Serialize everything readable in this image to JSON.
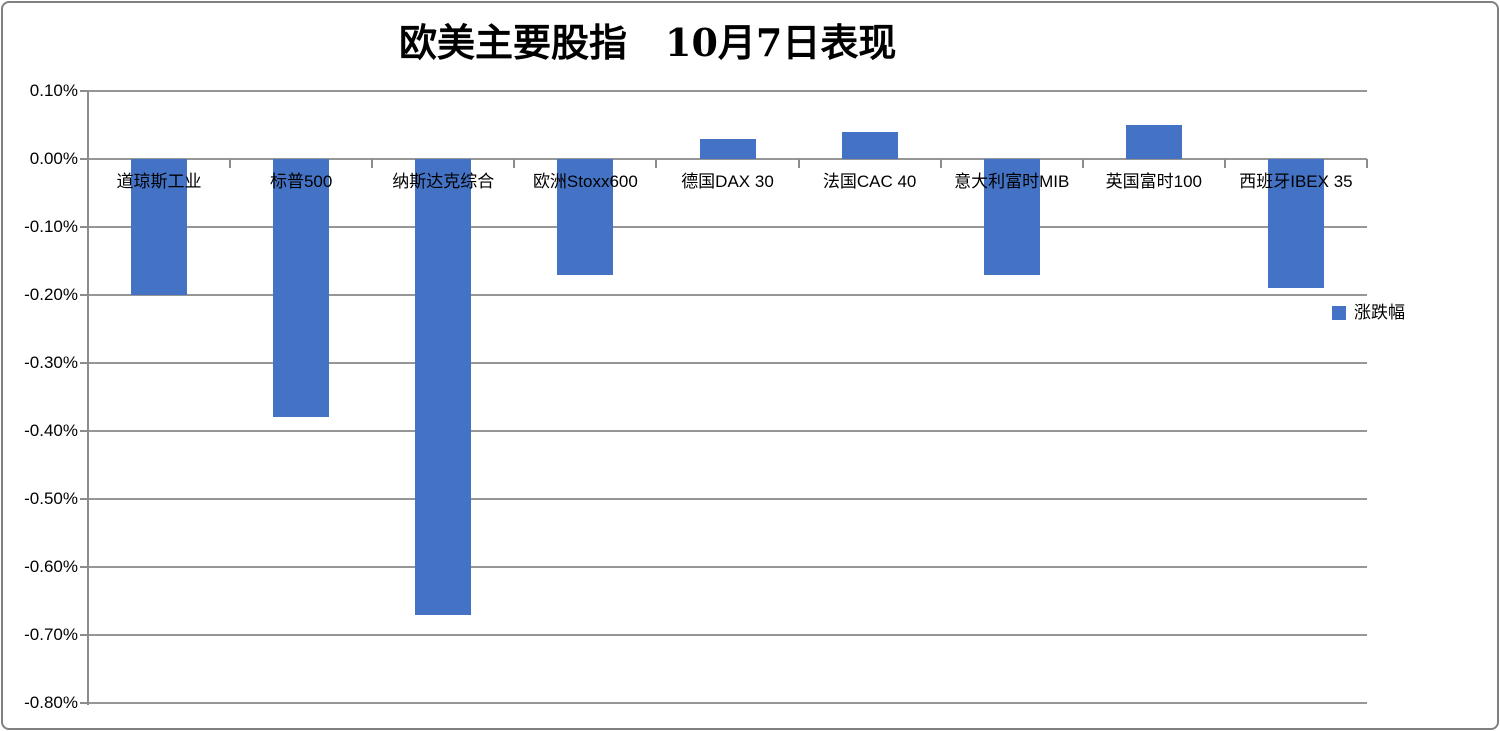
{
  "chart_data": {
    "type": "bar",
    "title": "欧美主要股指　10月7日表现",
    "categories": [
      "道琼斯工业",
      "标普500",
      "纳斯达克综合",
      "欧洲Stoxx600",
      "德国DAX 30",
      "法国CAC 40",
      "意大利富时MIB",
      "英国富时100",
      "西班牙IBEX 35"
    ],
    "series": [
      {
        "name": "涨跌幅",
        "values": [
          -0.2,
          -0.38,
          -0.67,
          -0.17,
          0.03,
          0.04,
          -0.17,
          0.05,
          -0.19
        ]
      }
    ],
    "value_unit": "%",
    "ylim": [
      0.1,
      -0.8
    ],
    "ytick_step": 0.1,
    "ytick_labels": [
      "0.10%",
      "0.00%",
      "-0.10%",
      "-0.20%",
      "-0.30%",
      "-0.40%",
      "-0.50%",
      "-0.60%",
      "-0.70%",
      "-0.80%"
    ],
    "grid": true,
    "legend": {
      "position": "right-middle",
      "entries": [
        "涨跌幅"
      ]
    },
    "colors": {
      "bar": "#4472C4",
      "gridline": "#969696",
      "axis": "#8C8C8C",
      "border": "#808080",
      "text": "#000000"
    }
  }
}
